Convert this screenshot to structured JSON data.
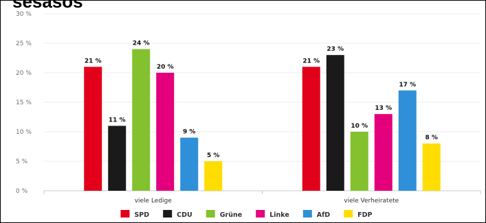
{
  "chart_data": {
    "type": "bar",
    "title": "sesasos",
    "categories": [
      "viele Ledige",
      "viele Verheiratete"
    ],
    "series": [
      {
        "name": "SPD",
        "color": "#e2001a",
        "values": [
          21,
          21
        ],
        "labels": [
          "21 %",
          "21 %"
        ]
      },
      {
        "name": "CDU",
        "color": "#1a1a1a",
        "values": [
          11,
          23
        ],
        "labels": [
          "11 %",
          "23 %"
        ]
      },
      {
        "name": "Grüne",
        "color": "#84c12e",
        "values": [
          24,
          10
        ],
        "labels": [
          "24 %",
          "10 %"
        ]
      },
      {
        "name": "Linke",
        "color": "#e4007c",
        "values": [
          20,
          13
        ],
        "labels": [
          "20 %",
          "13 %"
        ]
      },
      {
        "name": "AfD",
        "color": "#2f8fd8",
        "values": [
          9,
          17
        ],
        "labels": [
          "9 %",
          "17 %"
        ]
      },
      {
        "name": "FDP",
        "color": "#ffdd00",
        "values": [
          5,
          8
        ],
        "labels": [
          "5 %",
          "8 %"
        ]
      }
    ],
    "ylim": [
      0,
      30
    ],
    "yticks": [
      0,
      5,
      10,
      15,
      20,
      25,
      30
    ],
    "ytick_labels": [
      "0 %",
      "5 %",
      "10 %",
      "15 %",
      "20 %",
      "25 %",
      "30 %"
    ],
    "xlabel": "",
    "ylabel": "",
    "grid": true,
    "legend_position": "bottom"
  }
}
